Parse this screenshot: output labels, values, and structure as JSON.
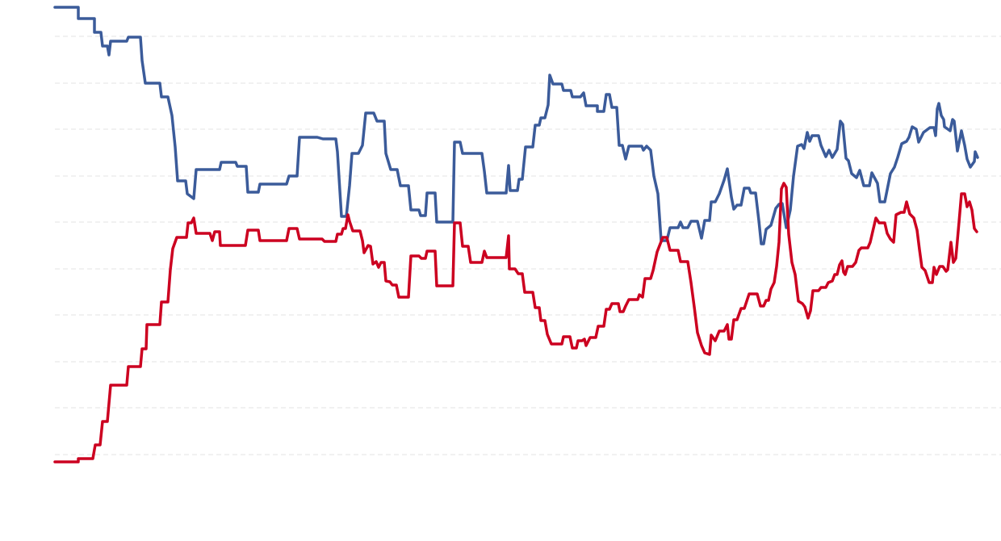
{
  "chart_data": {
    "type": "line",
    "xlim": [
      0,
      1172
    ],
    "ylim": [
      0,
      620
    ],
    "yticks": [
      57,
      115,
      172,
      230,
      287,
      345,
      402,
      460,
      517,
      575
    ],
    "grid": true,
    "series": [
      {
        "color": "#3b5b9a",
        "x": [
          0,
          29,
          29,
          49,
          49,
          57,
          59,
          65,
          67,
          69,
          89,
          91,
          106,
          108,
          112,
          130,
          132,
          140,
          145,
          149,
          152,
          162,
          164,
          172,
          175,
          204,
          206,
          224,
          226,
          237,
          239,
          252,
          254,
          287,
          290,
          300,
          303,
          325,
          332,
          348,
          350,
          355,
          361,
          365,
          368,
          376,
          381,
          385,
          395,
          399,
          408,
          410,
          416,
          424,
          428,
          438,
          441,
          451,
          453,
          459,
          461,
          471,
          473,
          493,
          495,
          502,
          505,
          529,
          532,
          535,
          559,
          562,
          564,
          573,
          575,
          579,
          583,
          592,
          595,
          600,
          602,
          607,
          611,
          613,
          617,
          628,
          630,
          639,
          641,
          651,
          655,
          658,
          672,
          672,
          680,
          683,
          687,
          690,
          696,
          699,
          703,
          707,
          711,
          727,
          729,
          733,
          738,
          742,
          747,
          751,
          758,
          762,
          772,
          775,
          778,
          784,
          788,
          796,
          801,
          805,
          811,
          813,
          818,
          823,
          829,
          833,
          838,
          841,
          845,
          850,
          854,
          860,
          862,
          868,
          872,
          875,
          878,
          881,
          887,
          893,
          897,
          901,
          906,
          911,
          915,
          920,
          925,
          928,
          932,
          935,
          938,
          946,
          949,
          955,
          959,
          963,
          969,
          973,
          976,
          980,
          983,
          987,
          993,
          997,
          1002,
          1009,
          1012,
          1019,
          1022,
          1028,
          1031,
          1035,
          1040,
          1044,
          1049,
          1055,
          1058,
          1062,
          1067,
          1070,
          1073,
          1076,
          1084,
          1089,
          1091,
          1093,
          1095,
          1098,
          1101,
          1102,
          1109,
          1112,
          1114,
          1118,
          1123,
          1127,
          1130,
          1134,
          1139,
          1140,
          1143
        ],
        "values": [
          611,
          611,
          597,
          597,
          580,
          580,
          563,
          563,
          552,
          569,
          569,
          574,
          574,
          545,
          517,
          517,
          500,
          500,
          477,
          438,
          396,
          396,
          380,
          374,
          410,
          410,
          419,
          419,
          414,
          414,
          382,
          382,
          392,
          392,
          402,
          402,
          450,
          450,
          448,
          448,
          432,
          352,
          352,
          390,
          430,
          430,
          440,
          480,
          480,
          470,
          470,
          430,
          410,
          410,
          390,
          390,
          360,
          360,
          353,
          353,
          381,
          381,
          345,
          345,
          444,
          444,
          430,
          430,
          408,
          381,
          381,
          415,
          384,
          384,
          398,
          398,
          438,
          438,
          465,
          465,
          474,
          474,
          490,
          527,
          516,
          516,
          508,
          508,
          500,
          500,
          505,
          489,
          489,
          482,
          482,
          503,
          503,
          487,
          487,
          440,
          440,
          423,
          439,
          439,
          434,
          439,
          434,
          402,
          380,
          322,
          322,
          338,
          338,
          345,
          338,
          338,
          346,
          346,
          325,
          347,
          347,
          370,
          370,
          380,
          397,
          411,
          376,
          361,
          366,
          366,
          387,
          387,
          381,
          381,
          347,
          318,
          318,
          336,
          341,
          362,
          367,
          368,
          338,
          360,
          402,
          439,
          441,
          436,
          456,
          445,
          452,
          452,
          440,
          426,
          434,
          425,
          435,
          470,
          466,
          424,
          421,
          405,
          400,
          409,
          390,
          390,
          406,
          393,
          370,
          370,
          385,
          405,
          413,
          425,
          442,
          445,
          450,
          463,
          460,
          444,
          450,
          456,
          462,
          462,
          452,
          485,
          492,
          477,
          472,
          463,
          458,
          472,
          470,
          433,
          458,
          440,
          423,
          413,
          420,
          432,
          425
        ]
      },
      {
        "color": "#cc0020",
        "x": [
          0,
          29,
          29,
          47,
          50,
          56,
          59,
          65,
          69,
          89,
          91,
          106,
          108,
          113,
          114,
          130,
          132,
          140,
          143,
          146,
          151,
          163,
          165,
          169,
          172,
          175,
          192,
          195,
          198,
          204,
          205,
          236,
          239,
          252,
          254,
          287,
          290,
          300,
          303,
          331,
          334,
          348,
          350,
          355,
          357,
          360,
          363,
          365,
          369,
          378,
          381,
          383,
          388,
          391,
          394,
          398,
          401,
          404,
          408,
          410,
          415,
          418,
          423,
          426,
          438,
          441,
          451,
          454,
          459,
          461,
          471,
          473,
          493,
          495,
          502,
          505,
          512,
          515,
          529,
          532,
          535,
          559,
          562,
          563,
          570,
          574,
          579,
          582,
          592,
          595,
          600,
          602,
          607,
          610,
          615,
          628,
          630,
          638,
          641,
          646,
          648,
          653,
          656,
          658,
          663,
          670,
          673,
          680,
          683,
          687,
          690,
          698,
          700,
          704,
          707,
          711,
          722,
          724,
          728,
          731,
          738,
          741,
          746,
          753,
          758,
          762,
          772,
          775,
          784,
          788,
          792,
          796,
          801,
          805,
          811,
          813,
          818,
          823,
          829,
          833,
          835,
          838,
          841,
          845,
          850,
          854,
          860,
          870,
          874,
          878,
          881,
          884,
          887,
          891,
          894,
          897,
          900,
          903,
          906,
          909,
          913,
          917,
          921,
          926,
          929,
          933,
          936,
          939,
          946,
          949,
          955,
          958,
          963,
          966,
          969,
          972,
          975,
          977,
          979,
          982,
          988,
          992,
          996,
          999,
          1007,
          1010,
          1013,
          1017,
          1021,
          1028,
          1031,
          1035,
          1039,
          1042,
          1048,
          1052,
          1055,
          1059,
          1064,
          1068,
          1071,
          1074,
          1078,
          1083,
          1087,
          1089,
          1092,
          1096,
          1100,
          1104,
          1106,
          1110,
          1113,
          1116,
          1120,
          1123,
          1127,
          1130,
          1133,
          1136,
          1139,
          1142
        ],
        "values": [
          48,
          48,
          52,
          52,
          69,
          69,
          98,
          98,
          143,
          143,
          166,
          166,
          188,
          188,
          218,
          218,
          246,
          246,
          286,
          312,
          326,
          326,
          344,
          344,
          350,
          331,
          331,
          322,
          333,
          333,
          316,
          316,
          335,
          335,
          322,
          322,
          337,
          337,
          324,
          324,
          321,
          321,
          330,
          330,
          337,
          337,
          354,
          346,
          334,
          334,
          322,
          307,
          316,
          315,
          293,
          296,
          289,
          295,
          295,
          272,
          271,
          267,
          267,
          252,
          252,
          303,
          303,
          300,
          300,
          309,
          309,
          266,
          266,
          344,
          344,
          315,
          315,
          295,
          295,
          309,
          301,
          301,
          328,
          287,
          287,
          281,
          281,
          258,
          258,
          239,
          239,
          223,
          223,
          206,
          194,
          194,
          203,
          203,
          189,
          189,
          198,
          198,
          200,
          192,
          202,
          202,
          216,
          216,
          237,
          237,
          244,
          244,
          234,
          234,
          241,
          249,
          249,
          255,
          252,
          275,
          275,
          285,
          308,
          326,
          326,
          310,
          310,
          296,
          296,
          270,
          240,
          208,
          192,
          183,
          181,
          205,
          198,
          210,
          210,
          218,
          200,
          200,
          224,
          224,
          238,
          238,
          256,
          256,
          241,
          241,
          248,
          248,
          262,
          270,
          290,
          320,
          386,
          393,
          388,
          330,
          295,
          280,
          247,
          244,
          240,
          226,
          235,
          260,
          260,
          264,
          264,
          270,
          272,
          280,
          280,
          292,
          297,
          283,
          280,
          290,
          290,
          295,
          310,
          313,
          313,
          320,
          333,
          350,
          344,
          344,
          331,
          324,
          320,
          354,
          357,
          357,
          370,
          355,
          350,
          335,
          311,
          289,
          285,
          270,
          270,
          289,
          280,
          290,
          290,
          284,
          286,
          320,
          295,
          300,
          345,
          380,
          380,
          364,
          370,
          360,
          337,
          333
        ]
      }
    ]
  }
}
